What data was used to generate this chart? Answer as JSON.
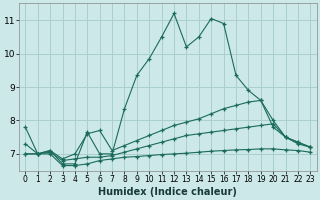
{
  "xlabel": "Humidex (Indice chaleur)",
  "bg_color": "#cce8e8",
  "grid_color": "#aacfcf",
  "line_color": "#1a6b5a",
  "xlim": [
    -0.5,
    23.5
  ],
  "ylim": [
    6.5,
    11.5
  ],
  "yticks": [
    7,
    8,
    9,
    10,
    11
  ],
  "xticks": [
    0,
    1,
    2,
    3,
    4,
    5,
    6,
    7,
    8,
    9,
    10,
    11,
    12,
    13,
    14,
    15,
    16,
    17,
    18,
    19,
    20,
    21,
    22,
    23
  ],
  "curves": [
    {
      "x": [
        0,
        1,
        2,
        3,
        4,
        5,
        6,
        7,
        8,
        9,
        10,
        11,
        12,
        13,
        14,
        15,
        16,
        17,
        18,
        19,
        20,
        21,
        22,
        23
      ],
      "y": [
        7.8,
        7.0,
        7.1,
        6.7,
        6.7,
        7.65,
        7.0,
        7.0,
        8.35,
        9.35,
        9.85,
        10.5,
        11.2,
        10.2,
        10.5,
        11.05,
        10.9,
        9.35,
        8.9,
        8.6,
        8.0,
        7.5,
        7.3,
        7.2
      ]
    },
    {
      "x": [
        0,
        1,
        2,
        3,
        4,
        5,
        6,
        7,
        8,
        9,
        10,
        11,
        12,
        13,
        14,
        15,
        16,
        17,
        18,
        19,
        20,
        21,
        22,
        23
      ],
      "y": [
        7.3,
        7.0,
        7.1,
        6.85,
        7.0,
        7.6,
        7.7,
        7.1,
        7.25,
        7.4,
        7.55,
        7.7,
        7.85,
        7.95,
        8.05,
        8.2,
        8.35,
        8.45,
        8.55,
        8.6,
        7.8,
        7.5,
        7.35,
        7.2
      ]
    },
    {
      "x": [
        0,
        1,
        2,
        3,
        4,
        5,
        6,
        7,
        8,
        9,
        10,
        11,
        12,
        13,
        14,
        15,
        16,
        17,
        18,
        19,
        20,
        21,
        22,
        23
      ],
      "y": [
        7.0,
        7.0,
        7.05,
        6.8,
        6.85,
        6.9,
        6.9,
        6.95,
        7.05,
        7.15,
        7.25,
        7.35,
        7.45,
        7.55,
        7.6,
        7.65,
        7.7,
        7.75,
        7.8,
        7.85,
        7.9,
        7.5,
        7.35,
        7.2
      ]
    },
    {
      "x": [
        0,
        1,
        2,
        3,
        4,
        5,
        6,
        7,
        8,
        9,
        10,
        11,
        12,
        13,
        14,
        15,
        16,
        17,
        18,
        19,
        20,
        21,
        22,
        23
      ],
      "y": [
        7.0,
        7.0,
        7.0,
        6.65,
        6.65,
        6.7,
        6.8,
        6.85,
        6.9,
        6.92,
        6.95,
        6.98,
        7.0,
        7.02,
        7.05,
        7.08,
        7.1,
        7.12,
        7.13,
        7.15,
        7.15,
        7.12,
        7.1,
        7.05
      ]
    }
  ]
}
